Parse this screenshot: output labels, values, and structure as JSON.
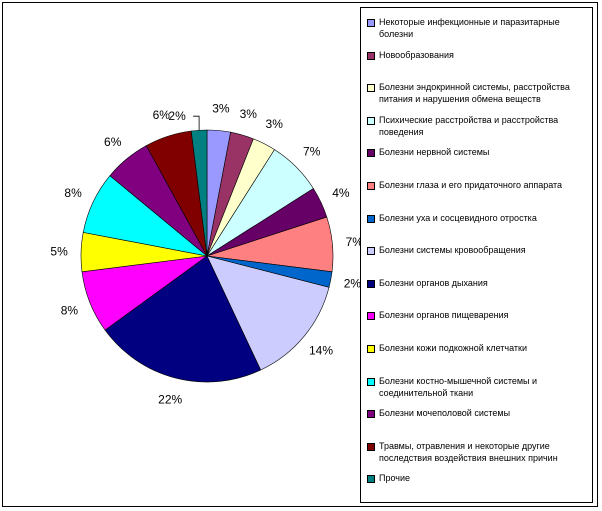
{
  "chart_data": {
    "type": "pie",
    "title": "",
    "legend_position": "right",
    "slices": [
      {
        "name": "Некоторые инфекционные и паразитарные болезни",
        "value": 3,
        "label": "3%",
        "color": "#9999ff"
      },
      {
        "name": "Новообразования",
        "value": 3,
        "label": "3%",
        "color": "#993366"
      },
      {
        "name": "Болезни эндокринной системы, расстройства питания и нарушения обмена веществ",
        "value": 3,
        "label": "3%",
        "color": "#ffffcc"
      },
      {
        "name": "Психические расстройства и расстройства поведения",
        "value": 7,
        "label": "7%",
        "color": "#ccffff"
      },
      {
        "name": "Болезни нервной системы",
        "value": 4,
        "label": "4%",
        "color": "#660066"
      },
      {
        "name": "Болезни глаза и его придаточного аппарата",
        "value": 7,
        "label": "7%",
        "color": "#ff8080"
      },
      {
        "name": "Болезни уха и сосцевидного отростка",
        "value": 2,
        "label": "2%",
        "color": "#0066cc"
      },
      {
        "name": "Болезни системы кровообращения",
        "value": 14,
        "label": "14%",
        "color": "#ccccff"
      },
      {
        "name": "Болезни органов дыхания",
        "value": 22,
        "label": "22%",
        "color": "#000080"
      },
      {
        "name": "Болезни органов пищеварения",
        "value": 8,
        "label": "8%",
        "color": "#ff00ff"
      },
      {
        "name": "Болезни кожи подкожной клетчатки",
        "value": 5,
        "label": "5%",
        "color": "#ffff00"
      },
      {
        "name": "Болезни костно-мышечной системы и соединительной ткани",
        "value": 8,
        "label": "8%",
        "color": "#00ffff"
      },
      {
        "name": "Болезни мочеполовой системы",
        "value": 6,
        "label": "6%",
        "color": "#800080"
      },
      {
        "name": "Травмы, отравления и некоторые другие последствия воздействия внешних причин",
        "value": 6,
        "label": "6%",
        "color": "#800000"
      },
      {
        "name": "Прочие",
        "value": 2,
        "label": "2%",
        "color": "#008080"
      }
    ]
  }
}
